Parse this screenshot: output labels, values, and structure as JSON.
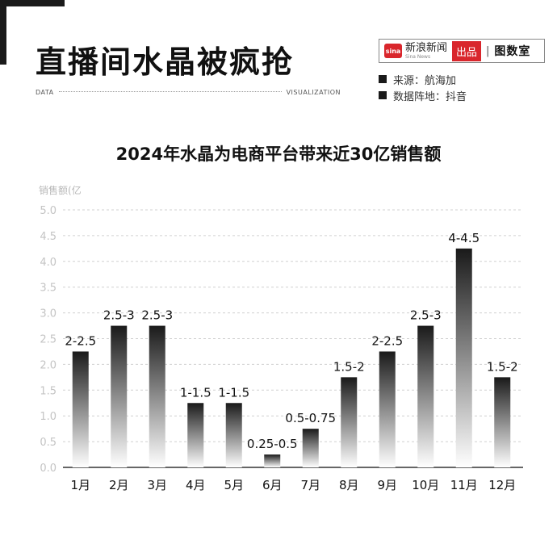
{
  "header": {
    "headline": "直播间水晶被疯抢",
    "left_caption": "DATA",
    "right_caption": "VISUALIZATION"
  },
  "brand": {
    "logo_text": "sina",
    "name": "新浪新闻",
    "sub": "Sina News",
    "tag": "出品",
    "separator": "|",
    "partner": "图数室"
  },
  "sources": [
    {
      "text": "来源：航海加"
    },
    {
      "text": "数据阵地：抖音"
    }
  ],
  "colors": {
    "bar_top": "#1a1a1a",
    "bar_bottom": "#ffffff",
    "grid": "#d0d0d0",
    "axis": "#333333",
    "tick": "#c4c4c4"
  },
  "chart_data": {
    "type": "bar",
    "title": "2024年水晶为电商平台带来近30亿销售额",
    "ylabel": "销售额(亿",
    "xlabel": "",
    "ylim": [
      0,
      5
    ],
    "yticks": [
      "0.0",
      "0.5",
      "1.0",
      "1.5",
      "2.0",
      "2.5",
      "3.0",
      "3.5",
      "4.0",
      "4.5",
      "5.0"
    ],
    "grid": true,
    "categories": [
      "1月",
      "2月",
      "3月",
      "4月",
      "5月",
      "6月",
      "7月",
      "8月",
      "9月",
      "10月",
      "11月",
      "12月"
    ],
    "values": [
      2.25,
      2.75,
      2.75,
      1.25,
      1.25,
      0.25,
      0.75,
      1.75,
      2.25,
      2.75,
      4.25,
      1.75
    ],
    "labels": [
      "2-2.5",
      "2.5-3",
      "2.5-3",
      "1-1.5",
      "1-1.5",
      "0.25-0.5",
      "0.5-0.75",
      "1.5-2",
      "2-2.5",
      "2.5-3",
      "4-4.5",
      "1.5-2"
    ]
  }
}
